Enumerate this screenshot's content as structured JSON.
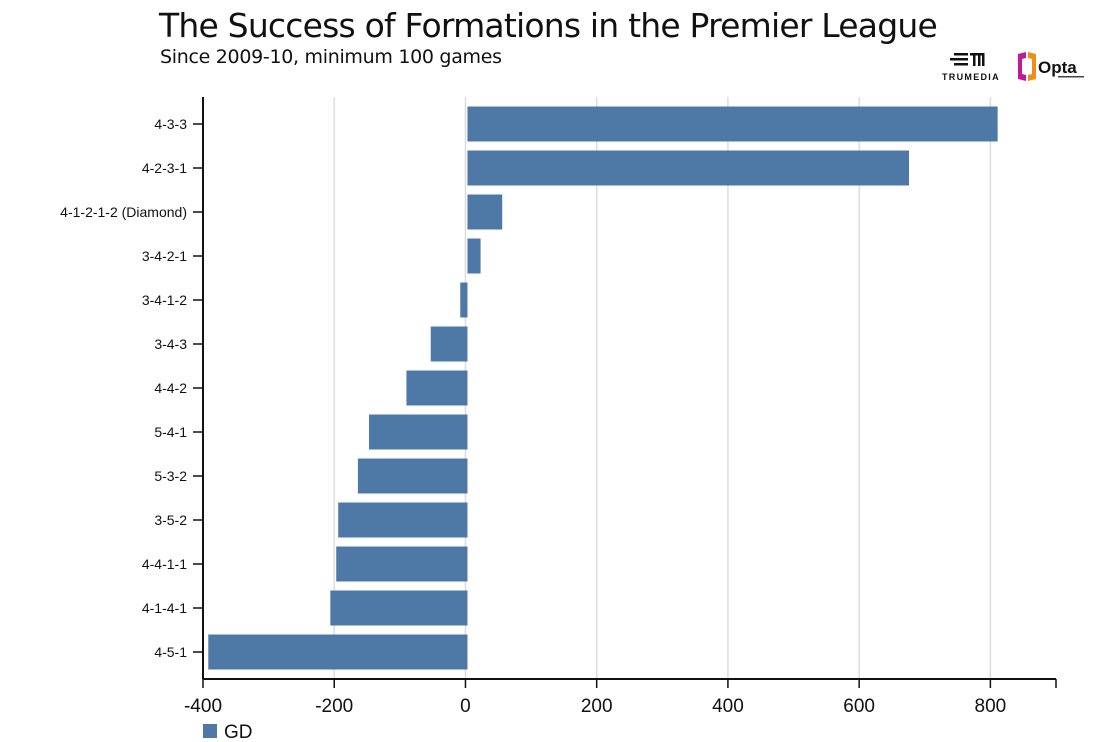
{
  "title": "The Success of Formations in the Premier League",
  "subtitle": "Since 2009-10, minimum 100 games",
  "logos": {
    "left": "TRUMEDIA",
    "right": "Opta"
  },
  "colors": {
    "bar": "#4e79a7",
    "grid": "#dddddd",
    "axis": "#111111"
  },
  "chart_data": {
    "type": "bar",
    "orientation": "horizontal",
    "categories": [
      "4-3-3",
      "4-2-3-1",
      "4-1-2-1-2 (Diamond)",
      "3-4-2-1",
      "3-4-1-2",
      "3-4-3",
      "4-4-2",
      "5-4-1",
      "5-3-2",
      "3-5-2",
      "4-4-1-1",
      "4-1-4-1",
      "4-5-1"
    ],
    "series": [
      {
        "name": "GD",
        "values": [
          808,
          673,
          53,
          20,
          -11,
          -56,
          -93,
          -150,
          -167,
          -197,
          -200,
          -209,
          -395
        ]
      }
    ],
    "xlim": [
      -400,
      900
    ],
    "xticks": [
      -400,
      -200,
      0,
      200,
      400,
      600,
      800
    ],
    "grid": "vertical",
    "legend": "bottom-left"
  }
}
